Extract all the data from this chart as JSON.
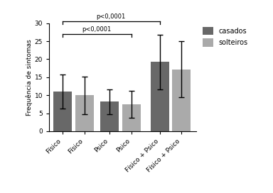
{
  "x_labels": [
    "Físico",
    "Físico",
    "Psico",
    "Psico",
    "Físico + Psico",
    "Físico + Psico"
  ],
  "values": [
    11.0,
    10.0,
    8.2,
    7.5,
    19.2,
    17.2
  ],
  "errors": [
    4.8,
    5.2,
    3.5,
    3.8,
    7.5,
    7.8
  ],
  "colors": [
    "#686868",
    "#aaaaaa",
    "#686868",
    "#aaaaaa",
    "#686868",
    "#aaaaaa"
  ],
  "hatch": [
    "",
    "///",
    "",
    "///",
    "",
    "///"
  ],
  "ylabel": "Frequência de sintomas",
  "ylim": [
    0,
    30
  ],
  "yticks": [
    0,
    5,
    10,
    15,
    20,
    25,
    30
  ],
  "legend_labels": [
    "casados",
    "solteiros"
  ],
  "legend_colors": [
    "#686868",
    "#aaaaaa"
  ],
  "legend_hatch": [
    "",
    "///"
  ],
  "bracket1_text": "p<0,0001",
  "bracket2_text": "p<0,0001",
  "bar_width": 0.55,
  "x_positions": [
    0,
    0.65,
    1.4,
    2.05,
    2.9,
    3.55
  ],
  "figsize": [
    3.84,
    2.72
  ],
  "dpi": 100
}
